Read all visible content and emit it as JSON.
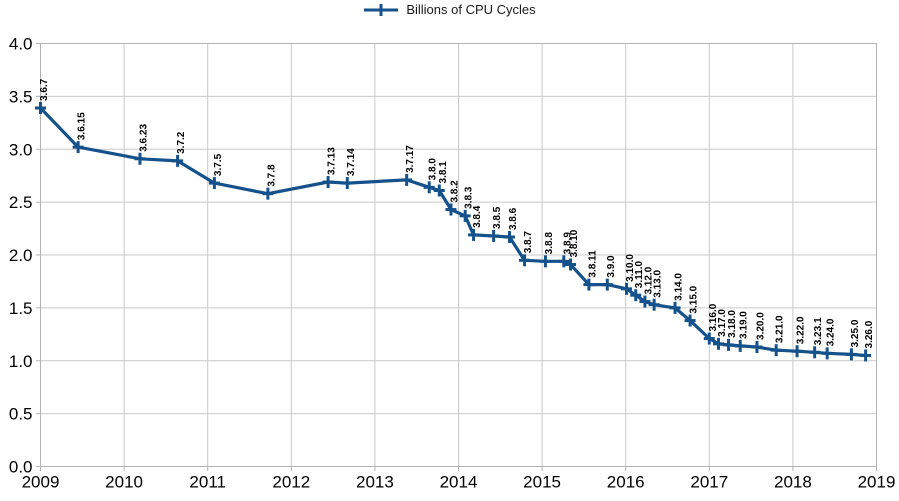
{
  "chart_data": {
    "type": "line",
    "title": "",
    "legend": "Billions of CPU Cycles",
    "legend_position": "top-center",
    "xlabel": "",
    "ylabel": "",
    "xlim": [
      2009,
      2019
    ],
    "ylim": [
      0,
      4.0
    ],
    "x_ticks": [
      2009,
      2010,
      2011,
      2012,
      2013,
      2014,
      2015,
      2016,
      2017,
      2018,
      2019
    ],
    "y_tick_labels": [
      "0.0",
      "0.5",
      "1.0",
      "1.5",
      "2.0",
      "2.5",
      "3.0",
      "3.5",
      "4.0"
    ],
    "grid": true,
    "marker": "plus",
    "line_color": "#15528c",
    "label_color": "#000000",
    "grid_color": "#c9c9c9",
    "frame_color": "#b3b3b3",
    "axis_text_color": "#000000",
    "series": [
      {
        "name": "Billions of CPU Cycles",
        "points": [
          {
            "v": "3.6.7",
            "x": 2009.0,
            "y": 3.39
          },
          {
            "v": "3.6.15",
            "x": 2009.45,
            "y": 3.02
          },
          {
            "v": "3.6.23",
            "x": 2010.19,
            "y": 2.91
          },
          {
            "v": "3.7.2",
            "x": 2010.64,
            "y": 2.89
          },
          {
            "v": "3.7.5",
            "x": 2011.08,
            "y": 2.68
          },
          {
            "v": "3.7.8",
            "x": 2011.72,
            "y": 2.58
          },
          {
            "v": "3.7.13",
            "x": 2012.44,
            "y": 2.69
          },
          {
            "v": "3.7.14",
            "x": 2012.67,
            "y": 2.68
          },
          {
            "v": "3.7.17",
            "x": 2013.38,
            "y": 2.71
          },
          {
            "v": "3.8.0",
            "x": 2013.65,
            "y": 2.64
          },
          {
            "v": "3.8.1",
            "x": 2013.77,
            "y": 2.61
          },
          {
            "v": "3.8.2",
            "x": 2013.91,
            "y": 2.43
          },
          {
            "v": "3.8.3",
            "x": 2014.08,
            "y": 2.37
          },
          {
            "v": "3.8.4",
            "x": 2014.18,
            "y": 2.19
          },
          {
            "v": "3.8.5",
            "x": 2014.42,
            "y": 2.18
          },
          {
            "v": "3.8.6",
            "x": 2014.61,
            "y": 2.17
          },
          {
            "v": "3.8.7",
            "x": 2014.79,
            "y": 1.95
          },
          {
            "v": "3.8.8",
            "x": 2015.04,
            "y": 1.94
          },
          {
            "v": "3.8.9",
            "x": 2015.26,
            "y": 1.94
          },
          {
            "v": "3.8.10",
            "x": 2015.34,
            "y": 1.91
          },
          {
            "v": "3.8.11",
            "x": 2015.56,
            "y": 1.72
          },
          {
            "v": "3.9.0",
            "x": 2015.78,
            "y": 1.72
          },
          {
            "v": "3.10.0",
            "x": 2016.01,
            "y": 1.68
          },
          {
            "v": "3.11.0",
            "x": 2016.12,
            "y": 1.62
          },
          {
            "v": "3.12.0",
            "x": 2016.23,
            "y": 1.56
          },
          {
            "v": "3.13.0",
            "x": 2016.34,
            "y": 1.53
          },
          {
            "v": "3.14.0",
            "x": 2016.59,
            "y": 1.5
          },
          {
            "v": "3.15.0",
            "x": 2016.77,
            "y": 1.38
          },
          {
            "v": "3.16.0",
            "x": 2017.0,
            "y": 1.21
          },
          {
            "v": "3.17.0",
            "x": 2017.11,
            "y": 1.16
          },
          {
            "v": "3.18.0",
            "x": 2017.23,
            "y": 1.15
          },
          {
            "v": "3.19.0",
            "x": 2017.37,
            "y": 1.14
          },
          {
            "v": "3.20.0",
            "x": 2017.57,
            "y": 1.13
          },
          {
            "v": "3.21.0",
            "x": 2017.8,
            "y": 1.1
          },
          {
            "v": "3.22.0",
            "x": 2018.05,
            "y": 1.09
          },
          {
            "v": "3.23.1",
            "x": 2018.26,
            "y": 1.08
          },
          {
            "v": "3.24.0",
            "x": 2018.41,
            "y": 1.07
          },
          {
            "v": "3.25.0",
            "x": 2018.7,
            "y": 1.06
          },
          {
            "v": "3.26.0",
            "x": 2018.87,
            "y": 1.05
          }
        ]
      }
    ]
  }
}
